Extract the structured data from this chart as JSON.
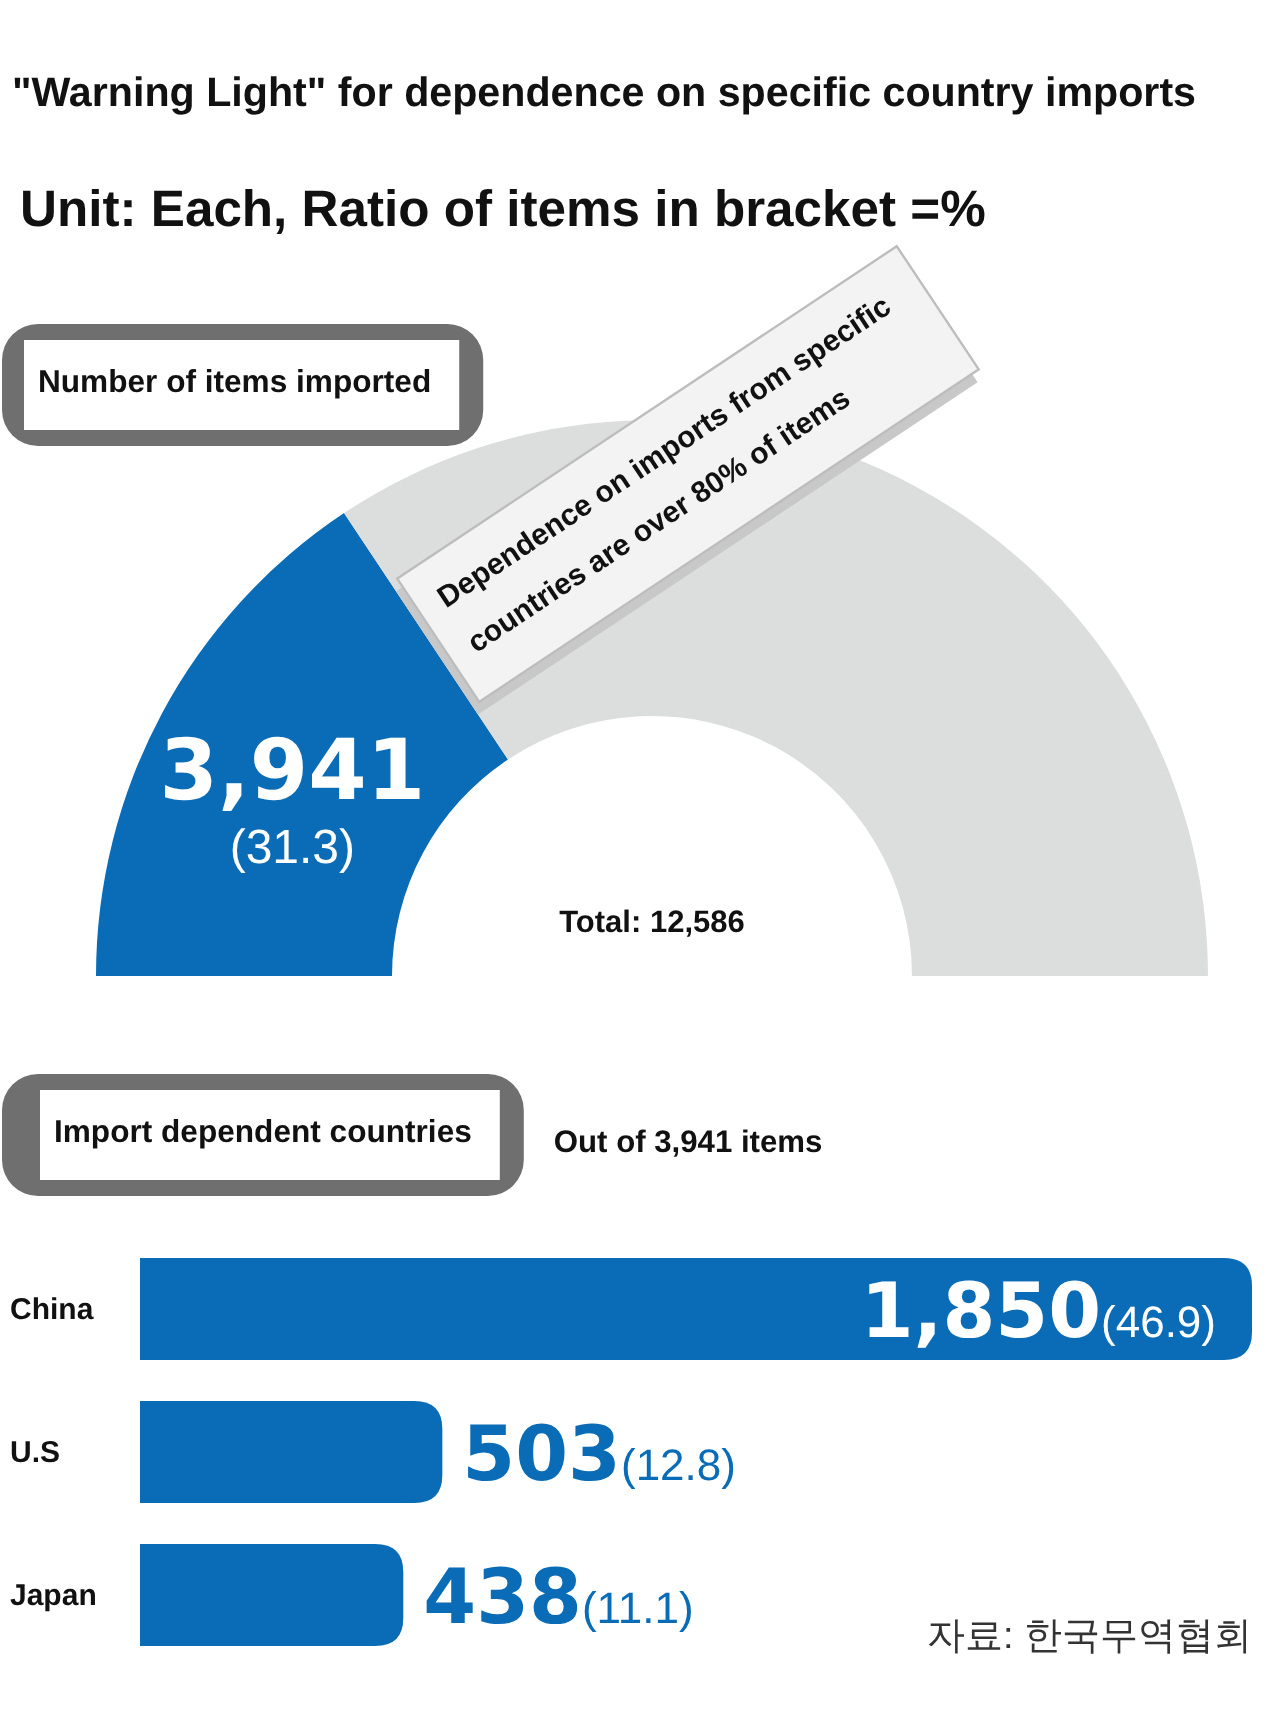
{
  "chart_data": [
    {
      "type": "other",
      "title": "\"Warning Light\" for dependence on specific country imports",
      "subtitle": "Unit: Each, Ratio of items in bracket =%"
    },
    {
      "type": "donut",
      "title": "Number of items imported",
      "categories": [
        null,
        null
      ],
      "values": [
        3941,
        8645
      ],
      "colors": [
        "#0a6cb6",
        "#dcdddd"
      ],
      "value_labels": [
        "**3,941** (31.3)",
        null
      ],
      "annotations": [
        "Total: 12,586",
        "Dependence on imports from specific countries are over 80% of items"
      ]
    },
    {
      "type": "bar",
      "orientation": "horizontal",
      "title": "Import dependent countries",
      "subtitle": "Out of 3,941 items",
      "categories": [
        "China",
        "U.S",
        "Japan"
      ],
      "values": [
        1850,
        503,
        438
      ],
      "color": "#0a6cb6",
      "value_labels": [
        "**1,850**(46.9)",
        "**503**(12.8)",
        "**438**(11.1)"
      ],
      "annotations": [
        "자료: 한국무역협회"
      ]
    }
  ]
}
